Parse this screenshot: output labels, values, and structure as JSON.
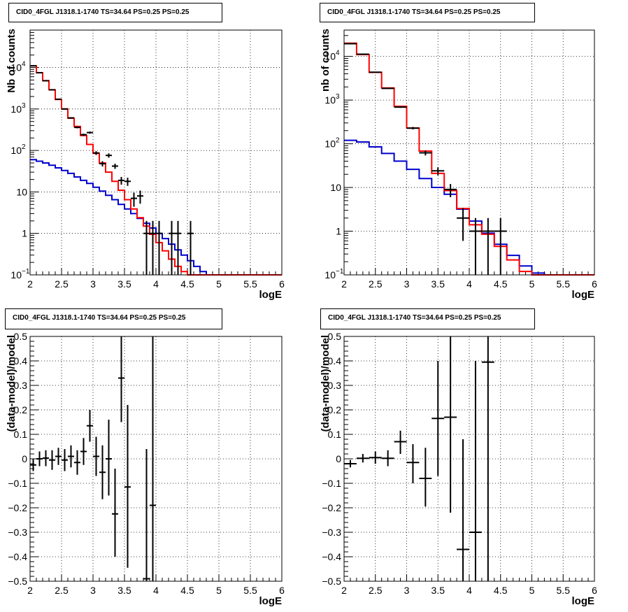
{
  "colors": {
    "data": "#000000",
    "total_model": "#ff0000",
    "component_model": "#0000cc"
  },
  "chart_data": [
    {
      "panel": "top-left",
      "type": "histogram",
      "title": "CID0_4FGL J1318.1-1740 TS=34.64 PS=0.25 PS=0.25",
      "xlabel": "logE",
      "ylabel": "Nb of counts",
      "xlim": [
        2,
        6
      ],
      "ylim": [
        0.1,
        80000
      ],
      "yscale": "log",
      "grid": true,
      "xticks": [
        "2",
        "2.5",
        "3",
        "3.5",
        "4",
        "4.5",
        "5",
        "5.5",
        "6"
      ],
      "yticks": [
        {
          "v": 0.1,
          "base": "10",
          "exp": "−1"
        },
        {
          "v": 1,
          "label": "1"
        },
        {
          "v": 10,
          "label": "10"
        },
        {
          "v": 100,
          "base": "10",
          "exp": "2"
        },
        {
          "v": 1000,
          "base": "10",
          "exp": "3"
        },
        {
          "v": 10000,
          "base": "10",
          "exp": "4"
        }
      ],
      "bin_edges": [
        2.0,
        2.1,
        2.2,
        2.3,
        2.4,
        2.5,
        2.6,
        2.7,
        2.8,
        2.9,
        3.0,
        3.1,
        3.2,
        3.3,
        3.4,
        3.5,
        3.6,
        3.7,
        3.8,
        3.9,
        4.0,
        4.1,
        4.2,
        4.3,
        4.4,
        4.5,
        4.6,
        4.7,
        4.8,
        4.9,
        5.0,
        5.1,
        5.2,
        5.3,
        5.4,
        5.5,
        5.6,
        5.7,
        5.8,
        5.9,
        6.0
      ],
      "series": [
        {
          "name": "",
          "role": "total_model",
          "values": [
            11000,
            7500,
            4800,
            2900,
            1700,
            1000,
            600,
            380,
            230,
            140,
            85,
            50,
            30,
            18,
            11,
            6.5,
            3.9,
            2.4,
            1.5,
            0.95,
            0.6,
            0.38,
            0.24,
            0.16,
            0.12,
            0.1,
            0.1,
            0.1,
            0.1,
            0.1,
            0.1,
            0.1,
            0.1,
            0.1,
            0.1,
            0.1,
            0.1,
            0.1,
            0.1,
            0.1
          ]
        },
        {
          "name": "",
          "role": "component_model",
          "values": [
            60,
            55,
            50,
            44,
            38,
            33,
            28,
            23,
            19,
            16,
            13,
            10.5,
            8.3,
            6.5,
            5.0,
            3.9,
            3.0,
            2.3,
            1.75,
            1.35,
            1.0,
            0.75,
            0.55,
            0.4,
            0.3,
            0.22,
            0.16,
            0.12,
            0.1,
            0.1,
            0.1,
            0.1,
            0.1,
            0.1,
            0.1,
            0.1,
            0.1,
            0.1,
            0.1,
            0.1
          ]
        }
      ],
      "points": [
        {
          "x": 2.05,
          "y": 11000,
          "lo": 10895,
          "hi": 11105
        },
        {
          "x": 2.15,
          "y": 7500,
          "lo": 7413,
          "hi": 7587
        },
        {
          "x": 2.25,
          "y": 4800,
          "lo": 4731,
          "hi": 4869
        },
        {
          "x": 2.35,
          "y": 2900,
          "lo": 2846,
          "hi": 2954
        },
        {
          "x": 2.45,
          "y": 1720,
          "lo": 1679,
          "hi": 1761
        },
        {
          "x": 2.55,
          "y": 1000,
          "lo": 968,
          "hi": 1032
        },
        {
          "x": 2.65,
          "y": 610,
          "lo": 585,
          "hi": 635
        },
        {
          "x": 2.75,
          "y": 360,
          "lo": 341,
          "hi": 379
        },
        {
          "x": 2.85,
          "y": 240,
          "lo": 225,
          "hi": 255
        },
        {
          "x": 2.95,
          "y": 270,
          "lo": 254,
          "hi": 286
        },
        {
          "x": 3.05,
          "y": 87,
          "lo": 78,
          "hi": 96
        },
        {
          "x": 3.15,
          "y": 48,
          "lo": 41,
          "hi": 55
        },
        {
          "x": 3.25,
          "y": 76,
          "lo": 67,
          "hi": 85
        },
        {
          "x": 3.35,
          "y": 42,
          "lo": 36,
          "hi": 48
        },
        {
          "x": 3.45,
          "y": 19,
          "lo": 15,
          "hi": 23
        },
        {
          "x": 3.55,
          "y": 18,
          "lo": 14,
          "hi": 22
        },
        {
          "x": 3.65,
          "y": 7,
          "lo": 4.4,
          "hi": 9.6
        },
        {
          "x": 3.75,
          "y": 8,
          "lo": 5.2,
          "hi": 10.8
        },
        {
          "x": 3.85,
          "y": 1,
          "lo": 0.1,
          "hi": 2
        },
        {
          "x": 3.95,
          "y": 1,
          "lo": 0.1,
          "hi": 2
        },
        {
          "x": 4.05,
          "y": 1,
          "lo": 0.1,
          "hi": 2
        },
        {
          "x": 4.25,
          "y": 1,
          "lo": 0.1,
          "hi": 2
        },
        {
          "x": 4.35,
          "y": 1,
          "lo": 0.1,
          "hi": 2
        },
        {
          "x": 4.55,
          "y": 1,
          "lo": 0.1,
          "hi": 2
        }
      ]
    },
    {
      "panel": "top-right",
      "type": "histogram",
      "title": "CID0_4FGL J1318.1-1740 TS=34.64 PS=0.25 PS=0.25",
      "xlabel": "logE",
      "ylabel": "nb of counts",
      "xlim": [
        2,
        6
      ],
      "ylim": [
        0.1,
        40000
      ],
      "yscale": "log",
      "grid": true,
      "xticks": [
        "2",
        "2.5",
        "3",
        "3.5",
        "4",
        "4.5",
        "5",
        "5.5",
        "6"
      ],
      "yticks": [
        {
          "v": 0.1,
          "base": "10",
          "exp": "−1"
        },
        {
          "v": 1,
          "label": "1"
        },
        {
          "v": 10,
          "label": "10"
        },
        {
          "v": 100,
          "base": "10",
          "exp": "2"
        },
        {
          "v": 1000,
          "base": "10",
          "exp": "3"
        },
        {
          "v": 10000,
          "base": "10",
          "exp": "4"
        }
      ],
      "bin_edges": [
        2.0,
        2.2,
        2.4,
        2.6,
        2.8,
        3.0,
        3.2,
        3.4,
        3.6,
        3.8,
        4.0,
        4.2,
        4.4,
        4.6,
        4.8,
        5.0,
        5.2,
        5.4,
        5.6,
        5.8,
        6.0
      ],
      "series": [
        {
          "name": "",
          "role": "total_model",
          "values": [
            20000,
            11000,
            4300,
            1900,
            720,
            230,
            68,
            21,
            8.5,
            3.3,
            1.4,
            0.85,
            0.45,
            0.22,
            0.12,
            0.1,
            0.1,
            0.1,
            0.1,
            0.1
          ]
        },
        {
          "name": "",
          "role": "component_model",
          "values": [
            120,
            110,
            85,
            60,
            40,
            26,
            16,
            10,
            7,
            3.2,
            1.7,
            0.9,
            0.5,
            0.28,
            0.16,
            0.11,
            0.1,
            0.1,
            0.1,
            0.1
          ]
        }
      ],
      "points": [
        {
          "x": 2.1,
          "y": 19500,
          "lo": 19360,
          "hi": 19640
        },
        {
          "x": 2.3,
          "y": 11200,
          "lo": 11094,
          "hi": 11306
        },
        {
          "x": 2.5,
          "y": 4350,
          "lo": 4284,
          "hi": 4416
        },
        {
          "x": 2.7,
          "y": 1850,
          "lo": 1807,
          "hi": 1893
        },
        {
          "x": 2.9,
          "y": 690,
          "lo": 664,
          "hi": 716
        },
        {
          "x": 3.1,
          "y": 228,
          "lo": 213,
          "hi": 243
        },
        {
          "x": 3.3,
          "y": 62,
          "lo": 54,
          "hi": 70
        },
        {
          "x": 3.5,
          "y": 24,
          "lo": 19,
          "hi": 29
        },
        {
          "x": 3.7,
          "y": 9,
          "lo": 6,
          "hi": 12
        },
        {
          "x": 3.9,
          "y": 2,
          "lo": 0.6,
          "hi": 3.4
        },
        {
          "x": 4.1,
          "y": 1,
          "lo": 0.1,
          "hi": 2
        },
        {
          "x": 4.3,
          "y": 1,
          "lo": 0.1,
          "hi": 2
        },
        {
          "x": 4.5,
          "y": 1,
          "lo": 0.1,
          "hi": 2
        }
      ]
    },
    {
      "panel": "bottom-left",
      "type": "scatter",
      "title": "CID0_4FGL J1318.1-1740 TS=34.64 PS=0.25 PS=0.25",
      "xlabel": "logE",
      "ylabel": "(data-model)/model",
      "xlim": [
        2,
        6
      ],
      "ylim": [
        -0.5,
        0.5
      ],
      "yscale": "linear",
      "grid": true,
      "xticks": [
        "2",
        "2.5",
        "3",
        "3.5",
        "4",
        "4.5",
        "5",
        "5.5",
        "6"
      ],
      "yticks": [
        {
          "v": -0.5,
          "label": "−0.5"
        },
        {
          "v": -0.4,
          "label": "−0.4"
        },
        {
          "v": -0.3,
          "label": "−0.3"
        },
        {
          "v": -0.2,
          "label": "−0.2"
        },
        {
          "v": -0.1,
          "label": "−0.1"
        },
        {
          "v": 0,
          "label": "0"
        },
        {
          "v": 0.1,
          "label": "0.1"
        },
        {
          "v": 0.2,
          "label": "0.2"
        },
        {
          "v": 0.3,
          "label": "0.3"
        },
        {
          "v": 0.4,
          "label": "0.4"
        },
        {
          "v": 0.5,
          "label": "0.5"
        }
      ],
      "xhalf": 0.05,
      "points": [
        {
          "x": 2.05,
          "y": -0.025,
          "lo": -0.05,
          "hi": 0.0
        },
        {
          "x": 2.15,
          "y": 0.0,
          "lo": -0.03,
          "hi": 0.03
        },
        {
          "x": 2.25,
          "y": 0.003,
          "lo": -0.03,
          "hi": 0.035
        },
        {
          "x": 2.35,
          "y": -0.005,
          "lo": -0.045,
          "hi": 0.035
        },
        {
          "x": 2.45,
          "y": 0.01,
          "lo": -0.025,
          "hi": 0.045
        },
        {
          "x": 2.55,
          "y": -0.005,
          "lo": -0.05,
          "hi": 0.04
        },
        {
          "x": 2.65,
          "y": 0.01,
          "lo": -0.035,
          "hi": 0.055
        },
        {
          "x": 2.75,
          "y": -0.015,
          "lo": -0.065,
          "hi": 0.035
        },
        {
          "x": 2.85,
          "y": 0.03,
          "lo": -0.025,
          "hi": 0.085
        },
        {
          "x": 2.95,
          "y": 0.135,
          "lo": 0.07,
          "hi": 0.2
        },
        {
          "x": 3.05,
          "y": 0.01,
          "lo": -0.07,
          "hi": 0.09
        },
        {
          "x": 3.15,
          "y": -0.055,
          "lo": -0.165,
          "hi": 0.055
        },
        {
          "x": 3.25,
          "y": 0.0,
          "lo": -0.15,
          "hi": 0.16
        },
        {
          "x": 3.35,
          "y": -0.225,
          "lo": -0.4,
          "hi": -0.04
        },
        {
          "x": 3.45,
          "y": 0.33,
          "lo": 0.15,
          "hi": 0.5
        },
        {
          "x": 3.55,
          "y": -0.115,
          "lo": -0.445,
          "hi": 0.22
        },
        {
          "x": 3.85,
          "y": -0.49,
          "lo": -0.5,
          "hi": 0.04
        },
        {
          "x": 3.95,
          "y": -0.19,
          "lo": -0.5,
          "hi": 0.5
        }
      ]
    },
    {
      "panel": "bottom-right",
      "type": "scatter",
      "title": "CID0_4FGL J1318.1-1740 TS=34.64 PS=0.25 PS=0.25",
      "xlabel": "logE",
      "ylabel": "(data-model)/model",
      "xlim": [
        2,
        6
      ],
      "ylim": [
        -0.5,
        0.5
      ],
      "yscale": "linear",
      "grid": true,
      "xticks": [
        "2",
        "2.5",
        "3",
        "3.5",
        "4",
        "4.5",
        "5",
        "5.5",
        "6"
      ],
      "yticks": [
        {
          "v": -0.5,
          "label": "−0.5"
        },
        {
          "v": -0.4,
          "label": "−0.4"
        },
        {
          "v": -0.3,
          "label": "−0.3"
        },
        {
          "v": -0.2,
          "label": "−0.2"
        },
        {
          "v": -0.1,
          "label": "−0.1"
        },
        {
          "v": 0,
          "label": "0"
        },
        {
          "v": 0.1,
          "label": "0.1"
        },
        {
          "v": 0.2,
          "label": "0.2"
        },
        {
          "v": 0.3,
          "label": "0.3"
        },
        {
          "v": 0.4,
          "label": "0.4"
        },
        {
          "v": 0.5,
          "label": "0.5"
        }
      ],
      "xhalf": 0.1,
      "points": [
        {
          "x": 2.1,
          "y": -0.02,
          "lo": -0.035,
          "hi": -0.005
        },
        {
          "x": 2.3,
          "y": 0.002,
          "lo": -0.015,
          "hi": 0.02
        },
        {
          "x": 2.5,
          "y": 0.005,
          "lo": -0.02,
          "hi": 0.03
        },
        {
          "x": 2.7,
          "y": 0.002,
          "lo": -0.03,
          "hi": 0.035
        },
        {
          "x": 2.9,
          "y": 0.07,
          "lo": 0.02,
          "hi": 0.115
        },
        {
          "x": 3.1,
          "y": -0.015,
          "lo": -0.1,
          "hi": 0.06
        },
        {
          "x": 3.3,
          "y": -0.08,
          "lo": -0.195,
          "hi": 0.045
        },
        {
          "x": 3.5,
          "y": 0.165,
          "lo": -0.07,
          "hi": 0.4
        },
        {
          "x": 3.7,
          "y": 0.17,
          "lo": -0.22,
          "hi": 0.5
        },
        {
          "x": 3.9,
          "y": -0.37,
          "lo": -0.5,
          "hi": 0.08
        },
        {
          "x": 4.1,
          "y": -0.3,
          "lo": -0.5,
          "hi": 0.4
        },
        {
          "x": 4.3,
          "y": 0.395,
          "lo": -0.5,
          "hi": 0.5
        }
      ]
    }
  ]
}
